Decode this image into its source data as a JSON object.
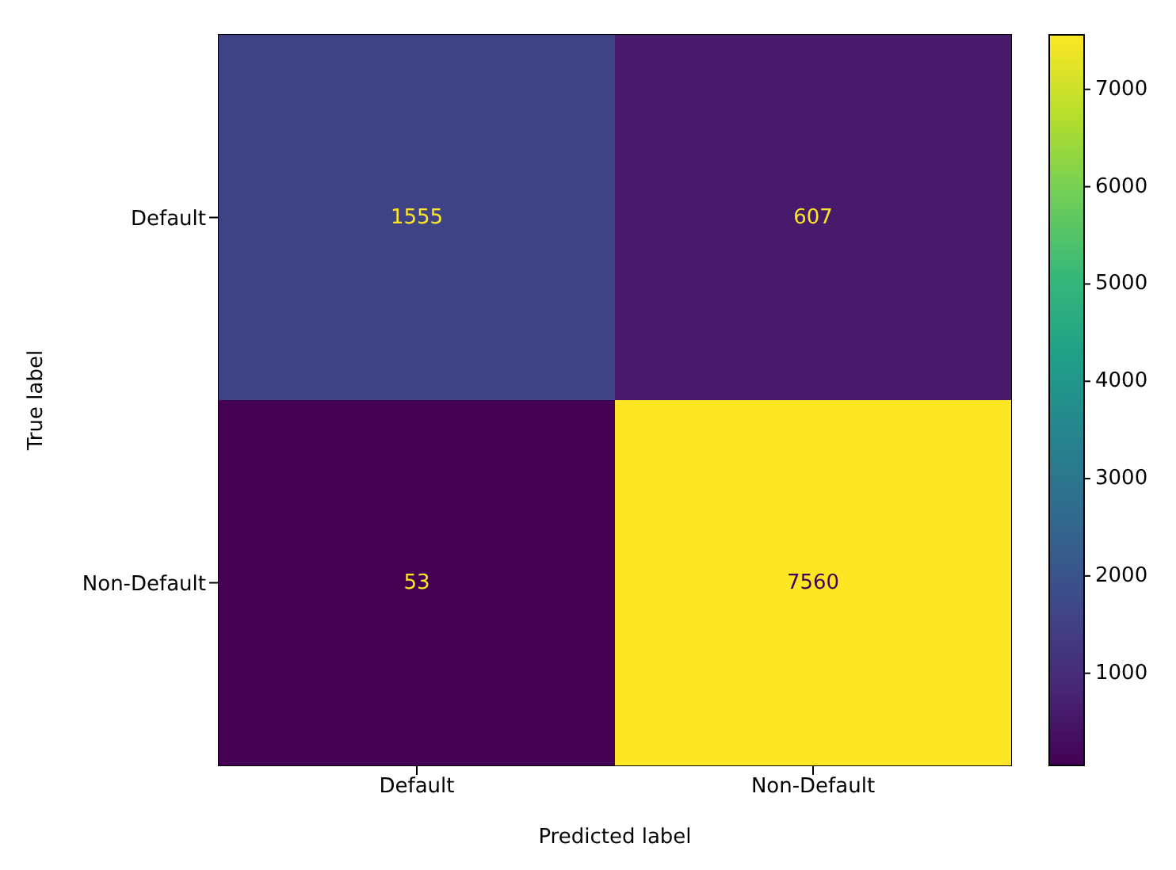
{
  "chart_data": {
    "type": "heatmap",
    "xlabel": "Predicted label",
    "ylabel": "True label",
    "categories": [
      "Default",
      "Non-Default"
    ],
    "y_categories": [
      "Default",
      "Non-Default"
    ],
    "cells": [
      [
        1555,
        607
      ],
      [
        53,
        7560
      ]
    ],
    "data_labels": true,
    "clim": [
      53,
      7560
    ],
    "cticks": [
      1000,
      2000,
      3000,
      4000,
      5000,
      6000,
      7000
    ]
  }
}
